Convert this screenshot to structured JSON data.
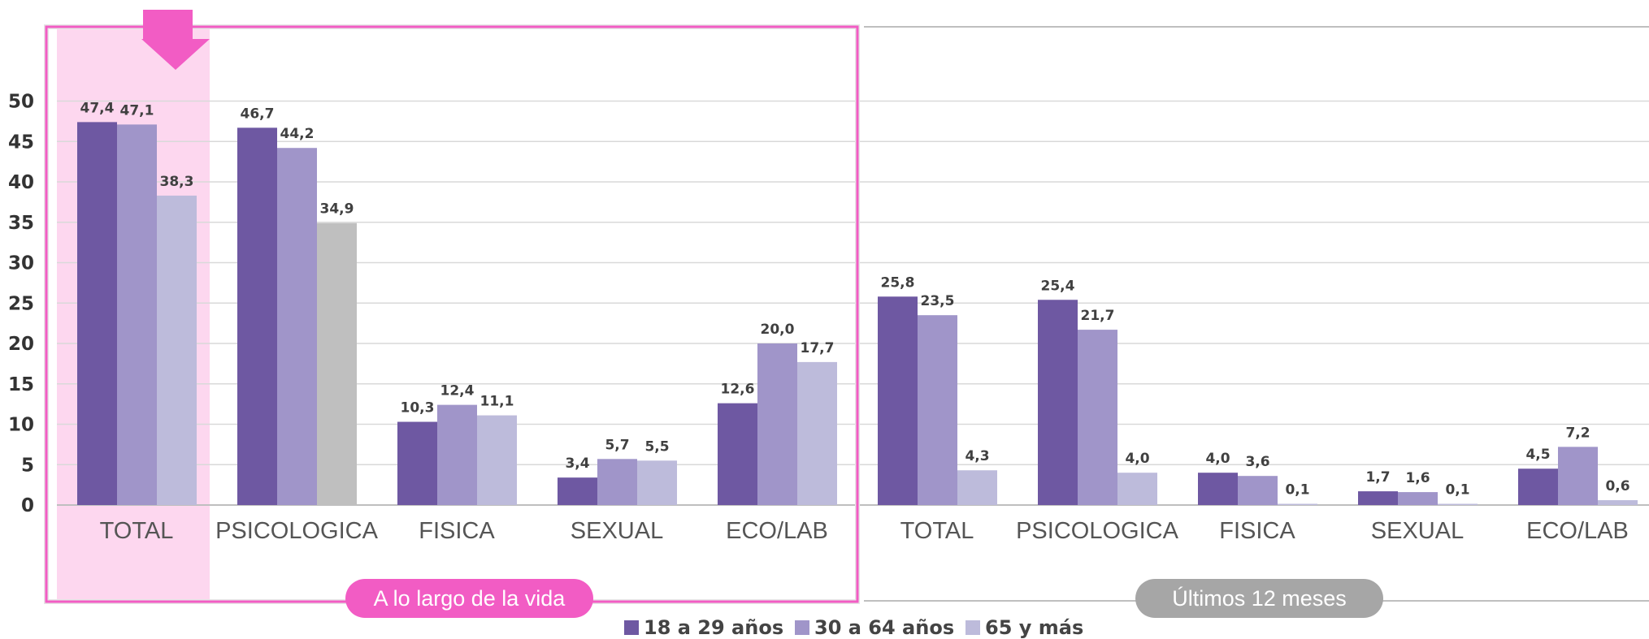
{
  "chart_data": {
    "type": "bar",
    "y_ticks": [
      "0",
      "5",
      "10",
      "15",
      "20",
      "25",
      "30",
      "35",
      "40",
      "45",
      "50"
    ],
    "ylim": [
      0,
      55
    ],
    "grid": true,
    "legend_position": "bottom",
    "groups": [
      {
        "label": "A lo largo de la vida",
        "highlighted": true,
        "categories": [
          "TOTAL",
          "PSICOLOGICA",
          "FISICA",
          "SEXUAL",
          "ECO/LAB"
        ]
      },
      {
        "label": "Últimos 12 meses",
        "highlighted": false,
        "categories": [
          "TOTAL",
          "PSICOLOGICA",
          "FISICA",
          "SEXUAL",
          "ECO/LAB"
        ]
      }
    ],
    "series": [
      {
        "name": "18 a 29 años",
        "color": "#6e58a2",
        "values": [
          47.4,
          46.7,
          10.3,
          3.4,
          12.6,
          25.8,
          25.4,
          4.0,
          1.7,
          4.5
        ],
        "labels": [
          "47,4",
          "46,7",
          "10,3",
          "3,4",
          "12,6",
          "25,8",
          "25,4",
          "4,0",
          "1,7",
          "4,5"
        ]
      },
      {
        "name": "30 a 64 años",
        "color": "#a095c9",
        "values": [
          47.1,
          44.2,
          12.4,
          5.7,
          20.0,
          23.5,
          21.7,
          3.6,
          1.6,
          7.2
        ],
        "labels": [
          "47,1",
          "44,2",
          "12,4",
          "5,7",
          "20,0",
          "23,5",
          "21,7",
          "3,6",
          "1,6",
          "7,2"
        ]
      },
      {
        "name": "65 y más",
        "color": "#bdbbdb",
        "values": [
          38.3,
          34.9,
          11.1,
          5.5,
          17.7,
          4.3,
          4.0,
          0.1,
          0.1,
          0.6
        ],
        "labels": [
          "38,3",
          "34,9",
          "11,1",
          "5,5",
          "17,7",
          "4,3",
          "4,0",
          "0,1",
          "0,1",
          "0,6"
        ],
        "point_colors": [
          "#bdbbdb",
          "#bfbfbf",
          "#bdbbdb",
          "#bdbbdb",
          "#bdbbdb",
          "#bdbbdb",
          "#bdbbdb",
          "#bdbbdb",
          "#bdbbdb",
          "#bdbbdb"
        ]
      }
    ],
    "annotations": {
      "highlight_category": "TOTAL",
      "highlight_color": "#fdd7ef",
      "group1_frame_color": "#f25cc4",
      "group1_pill_color": "#f25cc4",
      "group2_pill_color": "#a6a6a6",
      "arrow_color": "#f25cc4"
    }
  }
}
